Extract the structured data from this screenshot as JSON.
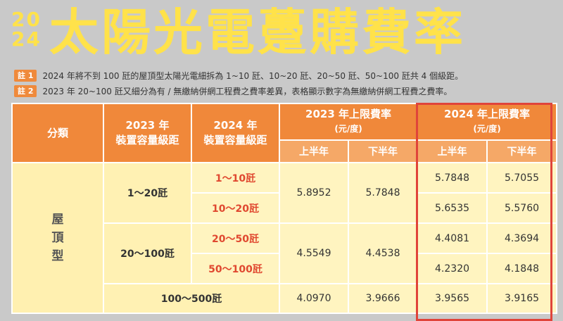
{
  "header": {
    "year_top": "20",
    "year_bottom": "24",
    "title": "太陽光電躉購費率"
  },
  "notes": [
    {
      "tag": "註 1",
      "text": "2024 年將不到 100 瓩的屋頂型太陽光電細拆為 1~10 瓩、10~20 瓩、20~50 瓩、50~100 瓩共 4 個級距。"
    },
    {
      "tag": "註 2",
      "text": "2023 年 20~100 瓩又細分為有 / 無繳納併網工程費之費率差異，表格顯示數字為無繳納併網工程費之費率。"
    }
  ],
  "table": {
    "headers": {
      "category": "分類",
      "col2023_line1": "2023 年",
      "col2023_line2": "裝置容量級距",
      "col2024_line1": "2024 年",
      "col2024_line2": "裝置容量級距",
      "rate2023": "2023 年上限費率",
      "rate2023_unit": "(元/度)",
      "rate2024": "2024 年上限費率",
      "rate2024_unit": "(元/度)",
      "first_half": "上半年",
      "second_half": "下半年"
    },
    "category_label": [
      "屋",
      "頂",
      "型"
    ],
    "groups": [
      {
        "range2023": "1～20瓩",
        "rate2023_h1": "5.8952",
        "rate2023_h2": "5.7848",
        "rows": [
          {
            "range2024": "1～10瓩",
            "h1": "5.7848",
            "h2": "5.7055"
          },
          {
            "range2024": "10～20瓩",
            "h1": "5.6535",
            "h2": "5.5760"
          }
        ]
      },
      {
        "range2023": "20～100瓩",
        "rate2023_h1": "4.5549",
        "rate2023_h2": "4.4538",
        "rows": [
          {
            "range2024": "20～50瓩",
            "h1": "4.4081",
            "h2": "4.3694"
          },
          {
            "range2024": "50～100瓩",
            "h1": "4.2320",
            "h2": "4.1848"
          }
        ]
      }
    ],
    "last_row": {
      "range": "100～500瓩",
      "rate2023_h1": "4.0970",
      "rate2023_h2": "3.9666",
      "h1": "3.9565",
      "h2": "3.9165"
    }
  },
  "colors": {
    "background": "#c9c9c9",
    "title": "#ffe24a",
    "header": "#f0883a",
    "highlight": "#e0443a"
  }
}
